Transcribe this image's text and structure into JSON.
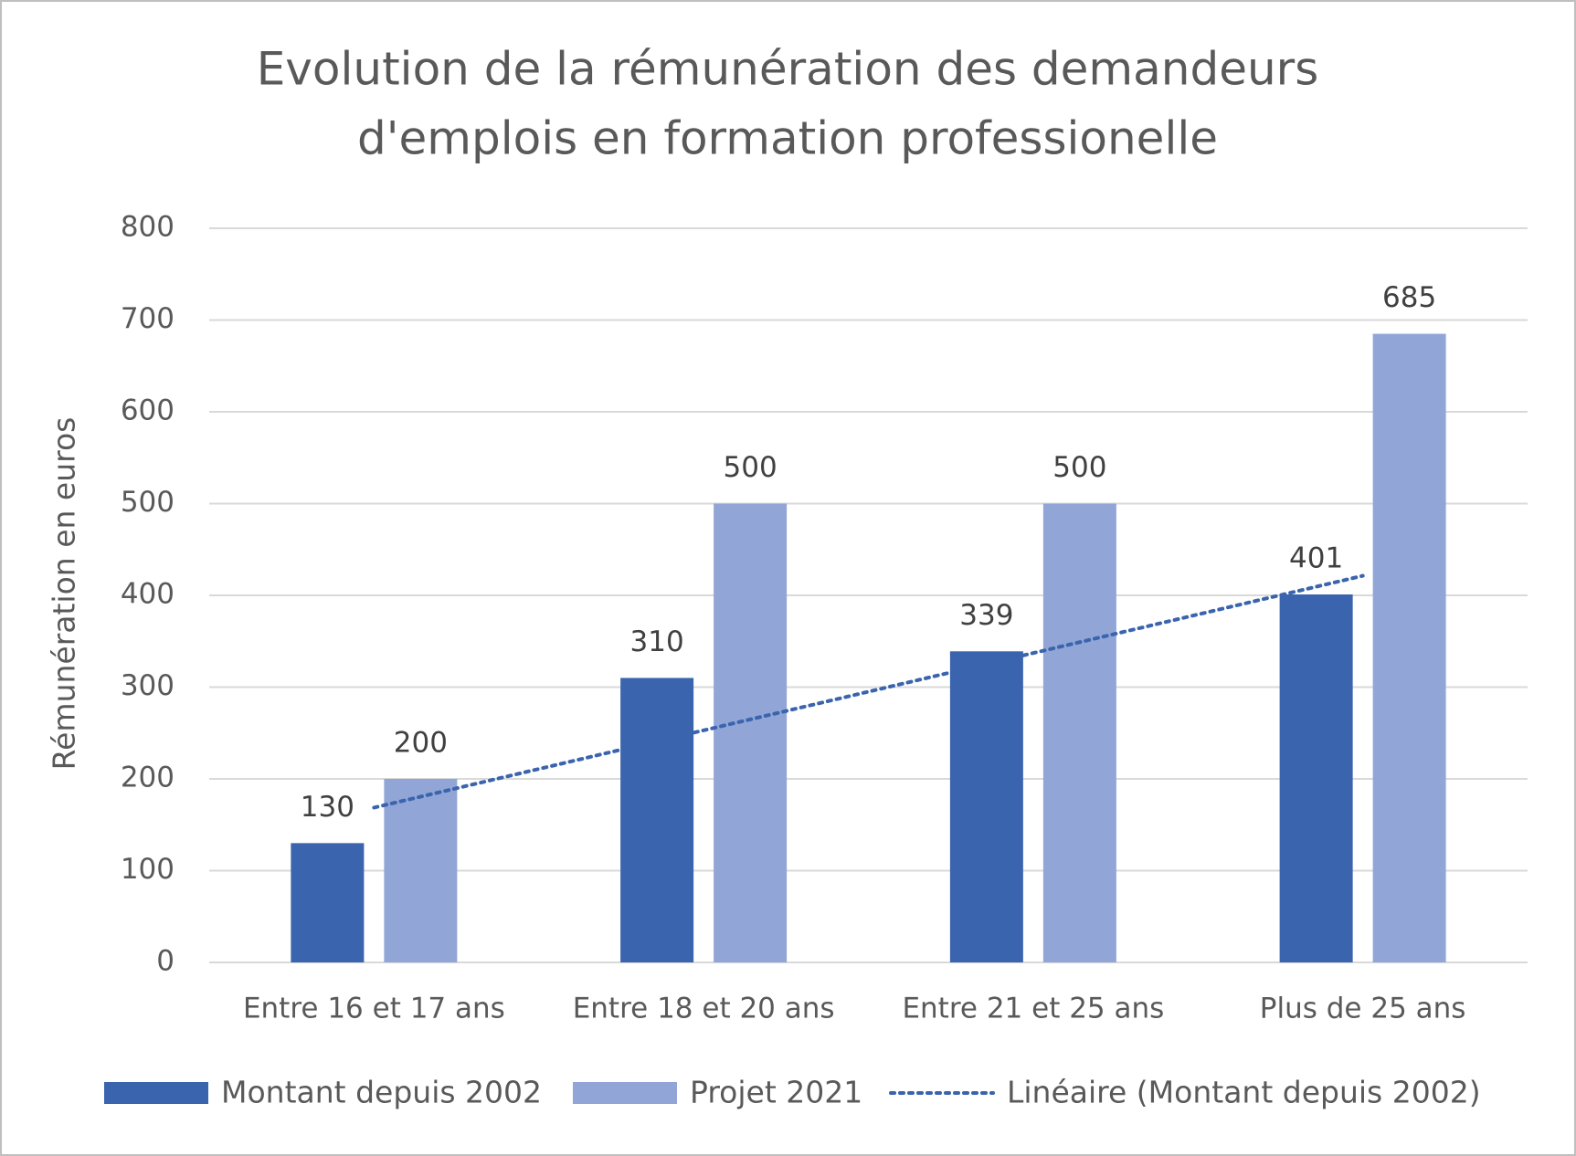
{
  "chart_data": {
    "type": "bar",
    "title": [
      "Evolution de la rémunération des demandeurs",
      "d'emplois en formation professionelle"
    ],
    "y_label": "Rémunération en euros",
    "categories": [
      "Entre 16 et 17 ans",
      "Entre 18 et 20 ans",
      "Entre 21 et 25 ans",
      "Plus de 25 ans"
    ],
    "series": [
      {
        "name": "Montant depuis 2002",
        "color": "#3a64ad",
        "values": [
          130,
          310,
          339,
          401
        ]
      },
      {
        "name": "Projet 2021",
        "color": "#91a6d6",
        "values": [
          200,
          500,
          500,
          685
        ]
      }
    ],
    "trendline": {
      "name": "Linéaire (Montant depuis 2002)",
      "series": 0,
      "kind": "linear",
      "color": "#3a64ad"
    },
    "ylim": [
      0,
      800
    ],
    "yticks": [
      0,
      100,
      200,
      300,
      400,
      500,
      600,
      700,
      800
    ],
    "grid": true,
    "legend": "bottom"
  }
}
